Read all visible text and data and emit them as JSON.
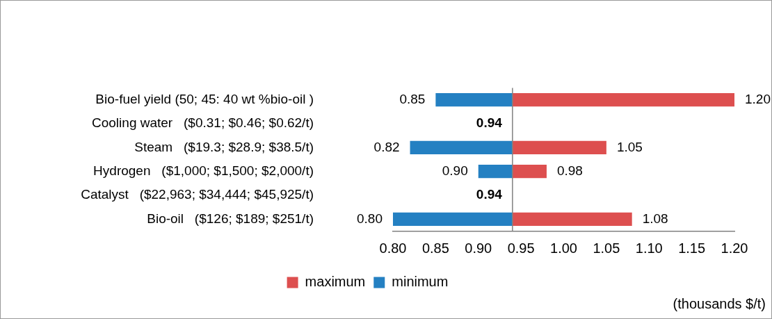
{
  "chart_data": {
    "type": "bar",
    "orientation": "horizontal",
    "categories": [
      "Bio-fuel yield (50; 45: 40 wt %bio-oil )",
      "Cooling water   ($0.31; $0.46; $0.62/t)",
      "Steam   ($19.3; $28.9; $38.5/t)",
      "Hydrogen   ($1,000; $1,500; $2,000/t)",
      "Catalyst   ($22,963; $34,444; $45,925/t)",
      "Bio-oil   ($126; $189; $251/t)"
    ],
    "series": [
      {
        "name": "maximum",
        "color": "#dd4f4f",
        "base": [
          0.94,
          null,
          0.94,
          0.94,
          null,
          0.94
        ],
        "values": [
          0.26,
          null,
          0.11,
          0.04,
          null,
          0.14
        ],
        "value_labels": [
          "1.20",
          null,
          "1.05",
          "0.98",
          null,
          "1.08"
        ]
      },
      {
        "name": "minimum",
        "color": "#2480c2",
        "base": [
          0.94,
          null,
          0.94,
          0.94,
          null,
          0.94
        ],
        "values": [
          -0.09,
          null,
          -0.12,
          -0.04,
          null,
          -0.14
        ],
        "value_labels": [
          "0.85",
          null,
          "0.82",
          "0.90",
          null,
          "0.80"
        ]
      }
    ],
    "annotations": [
      {
        "text": "0.94",
        "x": 0.94,
        "y": "Cooling water   ($0.31; $0.46; $0.62/t)"
      },
      {
        "text": "0.94",
        "x": 0.94,
        "y": "Catalyst   ($22,963; $34,444; $45,925/t)"
      }
    ],
    "xlim": [
      0.8,
      1.2
    ],
    "xticks": [
      {
        "value": 0.8,
        "label": "0.80"
      },
      {
        "value": 0.85,
        "label": "0.85"
      },
      {
        "value": 0.9,
        "label": "0.90"
      },
      {
        "value": 0.95,
        "label": "0.95"
      },
      {
        "value": 1.0,
        "label": "1.00"
      },
      {
        "value": 1.05,
        "label": "1.05"
      },
      {
        "value": 1.1,
        "label": "1.10"
      },
      {
        "value": 1.15,
        "label": "1.15"
      },
      {
        "value": 1.2,
        "label": "1.20"
      }
    ],
    "ref_lines": [
      {
        "axis": "x",
        "value": 0.94,
        "color": "#808080"
      }
    ],
    "xlabel": "(thousands $/t)",
    "legend": "bottom"
  }
}
